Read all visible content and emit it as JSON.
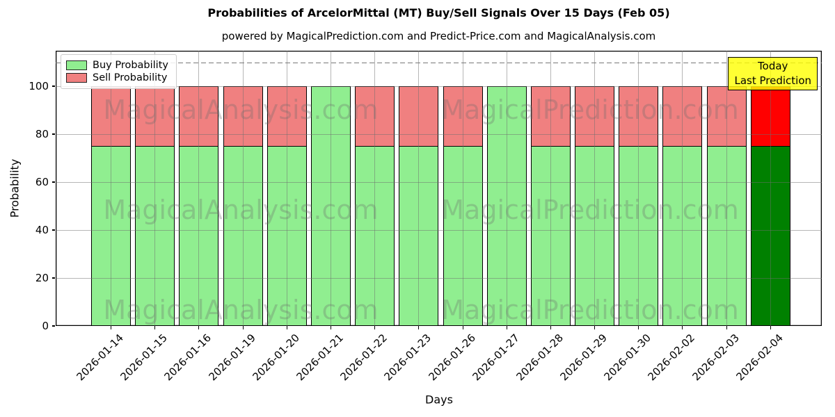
{
  "chart_data": {
    "type": "bar",
    "stacked": true,
    "title": "Probabilities of ArcelorMittal (MT) Buy/Sell Signals Over 15 Days (Feb 05)",
    "subtitle": "powered by MagicalPrediction.com and Predict-Price.com and MagicalAnalysis.com",
    "xlabel": "Days",
    "ylabel": "Probability",
    "ylim": [
      0,
      115
    ],
    "yticks": [
      0,
      20,
      40,
      60,
      80,
      100
    ],
    "grid": true,
    "dashed_line_y": 110,
    "categories": [
      "2026-01-14",
      "2026-01-15",
      "2026-01-16",
      "2026-01-19",
      "2026-01-20",
      "2026-01-21",
      "2026-01-22",
      "2026-01-23",
      "2026-01-26",
      "2026-01-27",
      "2026-01-28",
      "2026-01-29",
      "2026-01-30",
      "2026-02-02",
      "2026-02-03",
      "2026-02-04"
    ],
    "series": [
      {
        "name": "Buy Probability",
        "values": [
          75,
          75,
          75,
          75,
          75,
          100,
          75,
          75,
          75,
          100,
          75,
          75,
          75,
          75,
          75,
          75
        ]
      },
      {
        "name": "Sell Probability",
        "values": [
          25,
          25,
          25,
          25,
          25,
          0,
          25,
          25,
          25,
          0,
          25,
          25,
          25,
          25,
          25,
          25
        ]
      }
    ],
    "today_index": 15,
    "legend": {
      "position": "upper-left",
      "items": [
        {
          "label": "Buy Probability",
          "color": "#90EE90"
        },
        {
          "label": "Sell Probability",
          "color": "#F08080"
        }
      ]
    },
    "annotation": {
      "lines": [
        "Today",
        "Last Prediction"
      ],
      "bg_color": "#FFFF00"
    },
    "colors": {
      "buy": "#90EE90",
      "sell": "#F08080",
      "today_buy": "#008000",
      "today_sell": "#FF0000",
      "bar_edge": "#000000",
      "grid": "#B0B0B0",
      "dashed_line": "#777777",
      "annotation_bg": "#FFFF00",
      "watermark": "#A9A9A9"
    },
    "watermarks": [
      "MagicalAnalysis.com",
      "MagicalPrediction.com"
    ]
  }
}
